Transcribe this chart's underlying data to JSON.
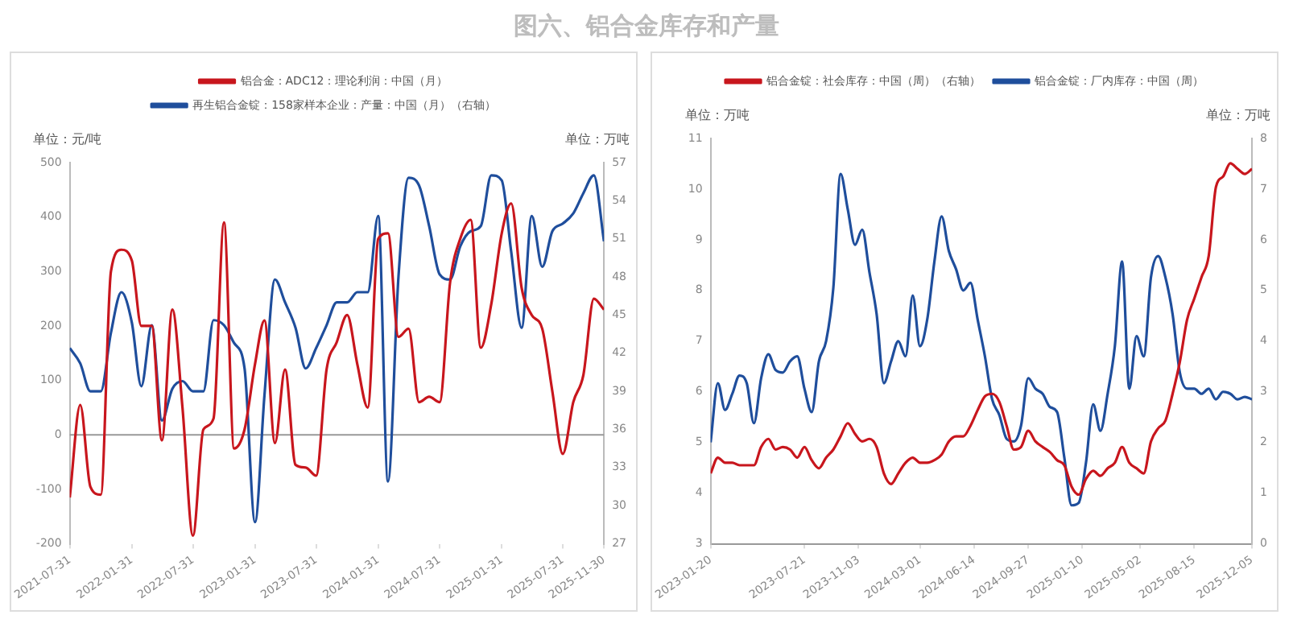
{
  "chart_data": [
    {
      "type": "line",
      "title": "图六、铝合金库存和产量",
      "ylabel": "单位：元/吨",
      "y2label": "单位：万吨",
      "legend": "top",
      "marker": "none",
      "line_style": "solid",
      "grid": false,
      "x": [
        "2021-07-31",
        "2021-08-31",
        "2021-09-30",
        "2021-10-31",
        "2021-11-30",
        "2021-12-31",
        "2022-01-31",
        "2022-02-28",
        "2022-03-31",
        "2022-04-30",
        "2022-05-31",
        "2022-06-30",
        "2022-07-31",
        "2022-08-31",
        "2022-09-30",
        "2022-10-31",
        "2022-11-30",
        "2022-12-31",
        "2023-01-31",
        "2023-02-28",
        "2023-03-31",
        "2023-04-30",
        "2023-05-31",
        "2023-06-30",
        "2023-07-31",
        "2023-08-31",
        "2023-09-30",
        "2023-10-31",
        "2023-11-30",
        "2023-12-31",
        "2024-01-31",
        "2024-02-29",
        "2024-03-31",
        "2024-04-30",
        "2024-05-31",
        "2024-06-30",
        "2024-07-31",
        "2024-08-31",
        "2024-09-30",
        "2024-10-31",
        "2024-11-30",
        "2024-12-31",
        "2025-01-31",
        "2025-02-28",
        "2025-03-31",
        "2025-04-30",
        "2025-05-31",
        "2025-06-30",
        "2025-07-31",
        "2025-08-31",
        "2025-09-30",
        "2025-10-31",
        "2025-11-30"
      ],
      "xlim": [
        "2021-07-31",
        "2025-11-30"
      ],
      "xticks": [
        "2021-07-31",
        "2022-01-31",
        "2022-07-31",
        "2023-01-31",
        "2023-07-31",
        "2024-01-31",
        "2024-07-31",
        "2025-01-31",
        "2025-07-31",
        "2025-11-30"
      ],
      "ylim": [
        -200,
        500
      ],
      "yticks": [
        -200,
        -100,
        0,
        100,
        200,
        300,
        400,
        500
      ],
      "y2lim": [
        27,
        57
      ],
      "y2ticks": [
        27,
        30,
        33,
        36,
        39,
        42,
        45,
        48,
        51,
        54,
        57
      ],
      "ref_lines": [
        {
          "axis": "y",
          "value": 0,
          "color": "#999999"
        }
      ],
      "series": [
        {
          "name": "铝合金：ADC12：理论利润：中国（月）",
          "color": "#c8161d",
          "values": [
            -115,
            55,
            -95,
            -110,
            300,
            340,
            320,
            200,
            200,
            -10,
            230,
            50,
            -185,
            10,
            30,
            390,
            -25,
            10,
            130,
            210,
            -15,
            120,
            -55,
            -60,
            -75,
            120,
            170,
            220,
            130,
            50,
            360,
            370,
            180,
            195,
            60,
            70,
            60,
            280,
            360,
            395,
            160,
            240,
            370,
            425,
            270,
            220,
            195,
            80,
            -35,
            60,
            110,
            250,
            230
          ]
        },
        {
          "name": "再生铝合金锭：158家样本企业：产量：中国（月）（右轴）",
          "color": "#1f4e9c",
          "axis": "y2",
          "values": [
            42.4,
            41.2,
            39,
            39,
            43.6,
            46.8,
            44.4,
            39.4,
            44.2,
            36.7,
            39.2,
            39.8,
            39,
            39,
            44.6,
            44.2,
            42.8,
            40.8,
            28.7,
            38.7,
            47.8,
            46,
            44,
            40.8,
            42.4,
            44.2,
            46,
            46,
            46.8,
            46.8,
            52.8,
            31.9,
            48,
            55.8,
            55.2,
            52,
            48.2,
            47.8,
            50.4,
            51.6,
            52,
            56,
            55.6,
            50,
            44,
            52.8,
            48.8,
            51.6,
            52.2,
            53,
            54.6,
            56,
            50.8
          ]
        }
      ]
    },
    {
      "type": "line",
      "ylabel": "单位：万吨",
      "y2label": "单位：万吨",
      "legend": "top",
      "marker": "none",
      "line_style": "solid",
      "grid": false,
      "x": [
        "2023-01-20",
        "2023-02-03",
        "2023-02-17",
        "2023-03-03",
        "2023-03-17",
        "2023-03-31",
        "2023-04-14",
        "2023-04-28",
        "2023-05-12",
        "2023-05-26",
        "2023-06-09",
        "2023-06-23",
        "2023-07-07",
        "2023-07-21",
        "2023-08-04",
        "2023-08-18",
        "2023-09-01",
        "2023-09-15",
        "2023-09-29",
        "2023-10-13",
        "2023-10-27",
        "2023-11-10",
        "2023-11-24",
        "2023-12-08",
        "2023-12-22",
        "2024-01-05",
        "2024-01-19",
        "2024-02-02",
        "2024-02-16",
        "2024-03-01",
        "2024-03-15",
        "2024-03-29",
        "2024-04-12",
        "2024-04-26",
        "2024-05-10",
        "2024-05-24",
        "2024-06-07",
        "2024-06-21",
        "2024-07-05",
        "2024-07-19",
        "2024-08-02",
        "2024-08-16",
        "2024-08-30",
        "2024-09-13",
        "2024-09-27",
        "2024-10-11",
        "2024-10-25",
        "2024-11-08",
        "2024-11-22",
        "2024-12-06",
        "2024-12-20",
        "2025-01-03",
        "2025-01-17",
        "2025-01-31",
        "2025-02-14",
        "2025-02-28",
        "2025-03-14",
        "2025-03-28",
        "2025-04-11",
        "2025-04-25",
        "2025-05-09",
        "2025-05-23",
        "2025-06-06",
        "2025-06-20",
        "2025-07-04",
        "2025-07-18",
        "2025-08-01",
        "2025-08-15",
        "2025-08-29",
        "2025-09-12",
        "2025-09-26",
        "2025-10-10",
        "2025-10-24",
        "2025-11-07",
        "2025-11-21",
        "2025-12-05"
      ],
      "xlim": [
        "2023-01-20",
        "2025-12-05"
      ],
      "xticks": [
        "2023-01-20",
        "2023-07-21",
        "2023-11-03",
        "2024-03-01",
        "2024-06-14",
        "2024-09-27",
        "2025-01-10",
        "2025-05-02",
        "2025-08-15",
        "2025-12-05"
      ],
      "ylim": [
        3,
        11
      ],
      "yticks": [
        3,
        4,
        5,
        6,
        7,
        8,
        9,
        10,
        11
      ],
      "y2lim": [
        0,
        8
      ],
      "y2ticks": [
        0,
        1,
        2,
        3,
        4,
        5,
        6,
        7,
        8
      ],
      "series": [
        {
          "name": "铝合金锭：社会库存：中国（周）（右轴）",
          "color": "#c8161d",
          "axis": "y2",
          "values": [
            1.39,
            1.7,
            1.6,
            1.6,
            1.55,
            1.55,
            1.55,
            1.91,
            2.07,
            1.86,
            1.91,
            1.86,
            1.7,
            1.91,
            1.65,
            1.49,
            1.7,
            1.86,
            2.12,
            2.38,
            2.17,
            2.02,
            2.07,
            1.91,
            1.39,
            1.18,
            1.39,
            1.6,
            1.7,
            1.6,
            1.6,
            1.65,
            1.76,
            2.02,
            2.12,
            2.12,
            2.33,
            2.64,
            2.91,
            2.96,
            2.8,
            2.33,
            1.86,
            1.91,
            2.23,
            2.02,
            1.91,
            1.81,
            1.65,
            1.55,
            1.13,
            0.97,
            1.28,
            1.44,
            1.34,
            1.49,
            1.6,
            1.91,
            1.6,
            1.49,
            1.39,
            2.02,
            2.28,
            2.43,
            2.96,
            3.59,
            4.42,
            4.84,
            5.26,
            5.68,
            7.04,
            7.25,
            7.51,
            7.4,
            7.3,
            7.4
          ]
        },
        {
          "name": "铝合金锭：厂内库存：中国（周）",
          "color": "#1f4e9c",
          "values": [
            5.0,
            6.17,
            5.64,
            5.96,
            6.32,
            6.17,
            5.38,
            6.27,
            6.74,
            6.43,
            6.38,
            6.6,
            6.7,
            6.06,
            5.6,
            6.6,
            7.0,
            8.05,
            10.3,
            9.6,
            8.9,
            9.2,
            8.36,
            7.53,
            6.17,
            6.6,
            7.0,
            6.7,
            7.9,
            6.9,
            7.42,
            8.57,
            9.46,
            8.78,
            8.42,
            8.0,
            8.15,
            7.42,
            6.7,
            5.85,
            5.54,
            5.07,
            5.02,
            5.33,
            6.27,
            6.06,
            5.96,
            5.7,
            5.6,
            4.7,
            3.76,
            3.81,
            4.6,
            5.75,
            5.23,
            5.96,
            6.9,
            8.57,
            6.06,
            7.1,
            6.7,
            8.26,
            8.68,
            8.26,
            7.53,
            6.38,
            6.06,
            6.06,
            5.96,
            6.06,
            5.85,
            6.0,
            5.96,
            5.85,
            5.9,
            5.85
          ]
        }
      ]
    }
  ]
}
